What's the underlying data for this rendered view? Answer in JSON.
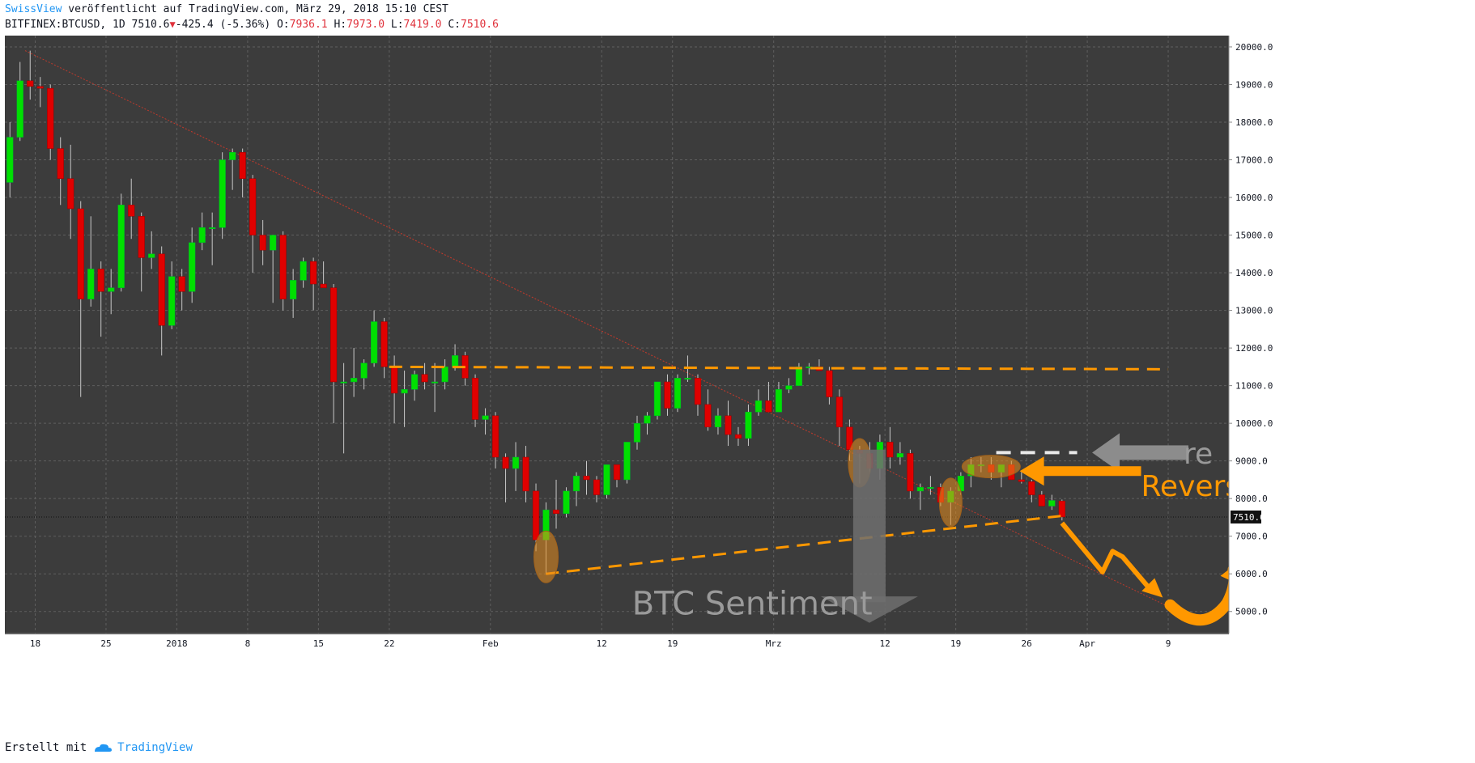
{
  "header": {
    "author": "SwissView",
    "published": "veröffentlicht auf TradingView.com, März 29, 2018 15:10 CEST",
    "symbol": "BITFINEX:BTCUSD, 1D",
    "last": "7510.6",
    "change": "-425.4 (-5.36%)",
    "o_label": "O:",
    "o_value": "7936.1",
    "h_label": "H:",
    "h_value": "7973.0",
    "l_label": "L:",
    "l_value": "7419.0",
    "c_label": "C:",
    "c_value": "7510.6"
  },
  "footer": {
    "label": "Erstellt mit",
    "brand": "TradingView"
  },
  "colors": {
    "background": "#3c3c3c",
    "grid": "#5f5f5f",
    "up": "#00e000",
    "down": "#e00000",
    "wick": "#c8c8c8",
    "annotation_orange": "#ff9800",
    "annotation_gray": "#8c8c8c",
    "trendline": "#c0392b"
  },
  "chart_data": {
    "type": "candlestick",
    "title": "",
    "price_label": "7510.6",
    "y_ticks": [
      5000,
      6000,
      7000,
      8000,
      9000,
      10000,
      11000,
      12000,
      13000,
      14000,
      15000,
      16000,
      17000,
      18000,
      19000,
      20000
    ],
    "y_tick_labels": [
      "5000.0",
      "6000.0",
      "7000.0",
      "8000.0",
      "9000.0",
      "10000.0",
      "11000.0",
      "12000.0",
      "13000.0",
      "14000.0",
      "15000.0",
      "16000.0",
      "17000.0",
      "18000.0",
      "19000.0",
      "20000.0"
    ],
    "ylim": [
      4500,
      20300
    ],
    "x_labels": [
      {
        "label": "18",
        "date": "2017-12-18"
      },
      {
        "label": "25",
        "date": "2017-12-25"
      },
      {
        "label": "2018",
        "date": "2018-01-01"
      },
      {
        "label": "8",
        "date": "2018-01-08"
      },
      {
        "label": "15",
        "date": "2018-01-15"
      },
      {
        "label": "22",
        "date": "2018-01-22"
      },
      {
        "label": "Feb",
        "date": "2018-02-01"
      },
      {
        "label": "12",
        "date": "2018-02-12"
      },
      {
        "label": "19",
        "date": "2018-02-19"
      },
      {
        "label": "Mrz",
        "date": "2018-03-01"
      },
      {
        "label": "12",
        "date": "2018-03-12"
      },
      {
        "label": "19",
        "date": "2018-03-19"
      },
      {
        "label": "26",
        "date": "2018-03-26"
      },
      {
        "label": "Apr",
        "date": "2018-04-01"
      },
      {
        "label": "9",
        "date": "2018-04-09"
      }
    ],
    "x_range": [
      "2017-12-15",
      "2018-04-15"
    ],
    "grid": true,
    "candles": [
      {
        "d": "2017-12-15",
        "o": 16400,
        "h": 18000,
        "l": 16000,
        "c": 17600
      },
      {
        "d": "2017-12-16",
        "o": 17600,
        "h": 19600,
        "l": 17500,
        "c": 19100
      },
      {
        "d": "2017-12-17",
        "o": 19100,
        "h": 19900,
        "l": 18600,
        "c": 18950
      },
      {
        "d": "2017-12-18",
        "o": 18950,
        "h": 19200,
        "l": 18400,
        "c": 18900
      },
      {
        "d": "2017-12-19",
        "o": 18900,
        "h": 19000,
        "l": 17000,
        "c": 17300
      },
      {
        "d": "2017-12-20",
        "o": 17300,
        "h": 17600,
        "l": 15800,
        "c": 16500
      },
      {
        "d": "2017-12-21",
        "o": 16500,
        "h": 17400,
        "l": 14900,
        "c": 15700
      },
      {
        "d": "2017-12-22",
        "o": 15700,
        "h": 15900,
        "l": 10700,
        "c": 13300
      },
      {
        "d": "2017-12-23",
        "o": 13300,
        "h": 15500,
        "l": 13100,
        "c": 14100
      },
      {
        "d": "2017-12-24",
        "o": 14100,
        "h": 14300,
        "l": 12300,
        "c": 13500
      },
      {
        "d": "2017-12-25",
        "o": 13500,
        "h": 14100,
        "l": 12900,
        "c": 13600
      },
      {
        "d": "2017-12-26",
        "o": 13600,
        "h": 16100,
        "l": 13500,
        "c": 15800
      },
      {
        "d": "2017-12-27",
        "o": 15800,
        "h": 16500,
        "l": 14900,
        "c": 15500
      },
      {
        "d": "2017-12-28",
        "o": 15500,
        "h": 15600,
        "l": 13500,
        "c": 14400
      },
      {
        "d": "2017-12-29",
        "o": 14400,
        "h": 15100,
        "l": 14100,
        "c": 14500
      },
      {
        "d": "2017-12-30",
        "o": 14500,
        "h": 14700,
        "l": 11800,
        "c": 12600
      },
      {
        "d": "2017-12-31",
        "o": 12600,
        "h": 14300,
        "l": 12500,
        "c": 13900
      },
      {
        "d": "2018-01-01",
        "o": 13900,
        "h": 14100,
        "l": 13000,
        "c": 13500
      },
      {
        "d": "2018-01-02",
        "o": 13500,
        "h": 15200,
        "l": 13200,
        "c": 14800
      },
      {
        "d": "2018-01-03",
        "o": 14800,
        "h": 15600,
        "l": 14600,
        "c": 15200
      },
      {
        "d": "2018-01-04",
        "o": 15200,
        "h": 15600,
        "l": 14200,
        "c": 15200
      },
      {
        "d": "2018-01-05",
        "o": 15200,
        "h": 17200,
        "l": 14900,
        "c": 17000
      },
      {
        "d": "2018-01-06",
        "o": 17000,
        "h": 17300,
        "l": 16200,
        "c": 17200
      },
      {
        "d": "2018-01-07",
        "o": 17200,
        "h": 17300,
        "l": 16000,
        "c": 16500
      },
      {
        "d": "2018-01-08",
        "o": 16500,
        "h": 16600,
        "l": 14000,
        "c": 15000
      },
      {
        "d": "2018-01-09",
        "o": 15000,
        "h": 15400,
        "l": 14200,
        "c": 14600
      },
      {
        "d": "2018-01-10",
        "o": 14600,
        "h": 14900,
        "l": 13200,
        "c": 15000
      },
      {
        "d": "2018-01-11",
        "o": 15000,
        "h": 15100,
        "l": 13000,
        "c": 13300
      },
      {
        "d": "2018-01-12",
        "o": 13300,
        "h": 14100,
        "l": 12800,
        "c": 13800
      },
      {
        "d": "2018-01-13",
        "o": 13800,
        "h": 14400,
        "l": 13600,
        "c": 14300
      },
      {
        "d": "2018-01-14",
        "o": 14300,
        "h": 14400,
        "l": 13000,
        "c": 13700
      },
      {
        "d": "2018-01-15",
        "o": 13700,
        "h": 14300,
        "l": 13600,
        "c": 13600
      },
      {
        "d": "2018-01-16",
        "o": 13600,
        "h": 13700,
        "l": 10000,
        "c": 11100
      },
      {
        "d": "2018-01-17",
        "o": 11100,
        "h": 11600,
        "l": 9200,
        "c": 11100
      },
      {
        "d": "2018-01-18",
        "o": 11100,
        "h": 12000,
        "l": 10700,
        "c": 11200
      },
      {
        "d": "2018-01-19",
        "o": 11200,
        "h": 11700,
        "l": 10900,
        "c": 11600
      },
      {
        "d": "2018-01-20",
        "o": 11600,
        "h": 13000,
        "l": 11500,
        "c": 12700
      },
      {
        "d": "2018-01-21",
        "o": 12700,
        "h": 12800,
        "l": 11200,
        "c": 11500
      },
      {
        "d": "2018-01-22",
        "o": 11500,
        "h": 11800,
        "l": 10000,
        "c": 10800
      },
      {
        "d": "2018-01-23",
        "o": 10800,
        "h": 11400,
        "l": 9900,
        "c": 10900
      },
      {
        "d": "2018-01-24",
        "o": 10900,
        "h": 11400,
        "l": 10600,
        "c": 11300
      },
      {
        "d": "2018-01-25",
        "o": 11300,
        "h": 11600,
        "l": 10900,
        "c": 11100
      },
      {
        "d": "2018-01-26",
        "o": 11100,
        "h": 11600,
        "l": 10300,
        "c": 11100
      },
      {
        "d": "2018-01-27",
        "o": 11100,
        "h": 11700,
        "l": 10900,
        "c": 11500
      },
      {
        "d": "2018-01-28",
        "o": 11500,
        "h": 12100,
        "l": 11400,
        "c": 11800
      },
      {
        "d": "2018-01-29",
        "o": 11800,
        "h": 11900,
        "l": 11000,
        "c": 11200
      },
      {
        "d": "2018-01-30",
        "o": 11200,
        "h": 11300,
        "l": 9900,
        "c": 10100
      },
      {
        "d": "2018-01-31",
        "o": 10100,
        "h": 10400,
        "l": 9700,
        "c": 10200
      },
      {
        "d": "2018-02-01",
        "o": 10200,
        "h": 10300,
        "l": 8800,
        "c": 9100
      },
      {
        "d": "2018-02-02",
        "o": 9100,
        "h": 9200,
        "l": 7900,
        "c": 8800
      },
      {
        "d": "2018-02-03",
        "o": 8800,
        "h": 9500,
        "l": 8200,
        "c": 9100
      },
      {
        "d": "2018-02-04",
        "o": 9100,
        "h": 9400,
        "l": 7900,
        "c": 8200
      },
      {
        "d": "2018-02-05",
        "o": 8200,
        "h": 8400,
        "l": 6600,
        "c": 6900
      },
      {
        "d": "2018-02-06",
        "o": 6900,
        "h": 7900,
        "l": 6000,
        "c": 7700
      },
      {
        "d": "2018-02-07",
        "o": 7700,
        "h": 8500,
        "l": 7200,
        "c": 7600
      },
      {
        "d": "2018-02-08",
        "o": 7600,
        "h": 8300,
        "l": 7500,
        "c": 8200
      },
      {
        "d": "2018-02-09",
        "o": 8200,
        "h": 8700,
        "l": 7800,
        "c": 8600
      },
      {
        "d": "2018-02-10",
        "o": 8600,
        "h": 9000,
        "l": 8100,
        "c": 8500
      },
      {
        "d": "2018-02-11",
        "o": 8500,
        "h": 8600,
        "l": 7900,
        "c": 8100
      },
      {
        "d": "2018-02-12",
        "o": 8100,
        "h": 8900,
        "l": 8000,
        "c": 8900
      },
      {
        "d": "2018-02-13",
        "o": 8900,
        "h": 8900,
        "l": 8300,
        "c": 8500
      },
      {
        "d": "2018-02-14",
        "o": 8500,
        "h": 9500,
        "l": 8400,
        "c": 9500
      },
      {
        "d": "2018-02-15",
        "o": 9500,
        "h": 10200,
        "l": 9300,
        "c": 10000
      },
      {
        "d": "2018-02-16",
        "o": 10000,
        "h": 10300,
        "l": 9700,
        "c": 10200
      },
      {
        "d": "2018-02-17",
        "o": 10200,
        "h": 11100,
        "l": 10100,
        "c": 11100
      },
      {
        "d": "2018-02-18",
        "o": 11100,
        "h": 11300,
        "l": 10200,
        "c": 10400
      },
      {
        "d": "2018-02-19",
        "o": 10400,
        "h": 11300,
        "l": 10300,
        "c": 11200
      },
      {
        "d": "2018-02-20",
        "o": 11200,
        "h": 11800,
        "l": 11100,
        "c": 11200
      },
      {
        "d": "2018-02-21",
        "o": 11200,
        "h": 11300,
        "l": 10200,
        "c": 10500
      },
      {
        "d": "2018-02-22",
        "o": 10500,
        "h": 10900,
        "l": 9800,
        "c": 9900
      },
      {
        "d": "2018-02-23",
        "o": 9900,
        "h": 10400,
        "l": 9700,
        "c": 10200
      },
      {
        "d": "2018-02-24",
        "o": 10200,
        "h": 10600,
        "l": 9400,
        "c": 9700
      },
      {
        "d": "2018-02-25",
        "o": 9700,
        "h": 9900,
        "l": 9400,
        "c": 9600
      },
      {
        "d": "2018-02-26",
        "o": 9600,
        "h": 10500,
        "l": 9400,
        "c": 10300
      },
      {
        "d": "2018-02-27",
        "o": 10300,
        "h": 10900,
        "l": 10200,
        "c": 10600
      },
      {
        "d": "2018-02-28",
        "o": 10600,
        "h": 11100,
        "l": 10300,
        "c": 10300
      },
      {
        "d": "2018-03-01",
        "o": 10300,
        "h": 11100,
        "l": 10300,
        "c": 10900
      },
      {
        "d": "2018-03-02",
        "o": 10900,
        "h": 11200,
        "l": 10800,
        "c": 11000
      },
      {
        "d": "2018-03-03",
        "o": 11000,
        "h": 11600,
        "l": 11000,
        "c": 11500
      },
      {
        "d": "2018-03-04",
        "o": 11500,
        "h": 11600,
        "l": 11300,
        "c": 11500
      },
      {
        "d": "2018-03-05",
        "o": 11500,
        "h": 11700,
        "l": 11400,
        "c": 11400
      },
      {
        "d": "2018-03-06",
        "o": 11400,
        "h": 11500,
        "l": 10500,
        "c": 10700
      },
      {
        "d": "2018-03-07",
        "o": 10700,
        "h": 10900,
        "l": 9400,
        "c": 9900
      },
      {
        "d": "2018-03-08",
        "o": 9900,
        "h": 10100,
        "l": 9000,
        "c": 9300
      },
      {
        "d": "2018-03-09",
        "o": 9300,
        "h": 9400,
        "l": 8400,
        "c": 9200
      },
      {
        "d": "2018-03-10",
        "o": 9200,
        "h": 9500,
        "l": 8700,
        "c": 8800
      },
      {
        "d": "2018-03-11",
        "o": 8800,
        "h": 9700,
        "l": 8500,
        "c": 9500
      },
      {
        "d": "2018-03-12",
        "o": 9500,
        "h": 9900,
        "l": 8800,
        "c": 9100
      },
      {
        "d": "2018-03-13",
        "o": 9100,
        "h": 9500,
        "l": 8900,
        "c": 9200
      },
      {
        "d": "2018-03-14",
        "o": 9200,
        "h": 9300,
        "l": 8000,
        "c": 8200
      },
      {
        "d": "2018-03-15",
        "o": 8200,
        "h": 8400,
        "l": 7700,
        "c": 8300
      },
      {
        "d": "2018-03-16",
        "o": 8300,
        "h": 8600,
        "l": 8100,
        "c": 8300
      },
      {
        "d": "2018-03-17",
        "o": 8300,
        "h": 8400,
        "l": 7800,
        "c": 7900
      },
      {
        "d": "2018-03-18",
        "o": 7900,
        "h": 8300,
        "l": 7300,
        "c": 8200
      },
      {
        "d": "2018-03-19",
        "o": 8200,
        "h": 8700,
        "l": 8100,
        "c": 8600
      },
      {
        "d": "2018-03-20",
        "o": 8600,
        "h": 9100,
        "l": 8300,
        "c": 8900
      },
      {
        "d": "2018-03-21",
        "o": 8900,
        "h": 9100,
        "l": 8700,
        "c": 8900
      },
      {
        "d": "2018-03-22",
        "o": 8900,
        "h": 9100,
        "l": 8500,
        "c": 8700
      },
      {
        "d": "2018-03-23",
        "o": 8700,
        "h": 8900,
        "l": 8300,
        "c": 8900
      },
      {
        "d": "2018-03-24",
        "o": 8900,
        "h": 9000,
        "l": 8500,
        "c": 8500
      },
      {
        "d": "2018-03-25",
        "o": 8500,
        "h": 8700,
        "l": 8400,
        "c": 8450
      },
      {
        "d": "2018-03-26",
        "o": 8450,
        "h": 8500,
        "l": 7900,
        "c": 8100
      },
      {
        "d": "2018-03-27",
        "o": 8100,
        "h": 8200,
        "l": 7800,
        "c": 7800
      },
      {
        "d": "2018-03-28",
        "o": 7800,
        "h": 8100,
        "l": 7700,
        "c": 7950
      },
      {
        "d": "2018-03-29",
        "o": 7936.1,
        "h": 7973.0,
        "l": 7419.0,
        "c": 7510.6
      }
    ],
    "annotations": {
      "resistance_level": 11500,
      "support_line": [
        {
          "d": "2018-02-06",
          "v": 6000
        },
        {
          "d": "2018-03-29",
          "v": 7550
        }
      ],
      "downtrend_line": [
        {
          "d": "2017-12-17",
          "v": 19900
        },
        {
          "d": "2018-04-10",
          "v": 5000
        }
      ],
      "text_sentiment": "BTC Sentiment",
      "text_reversal": "Reversal",
      "text_re": "re"
    }
  }
}
